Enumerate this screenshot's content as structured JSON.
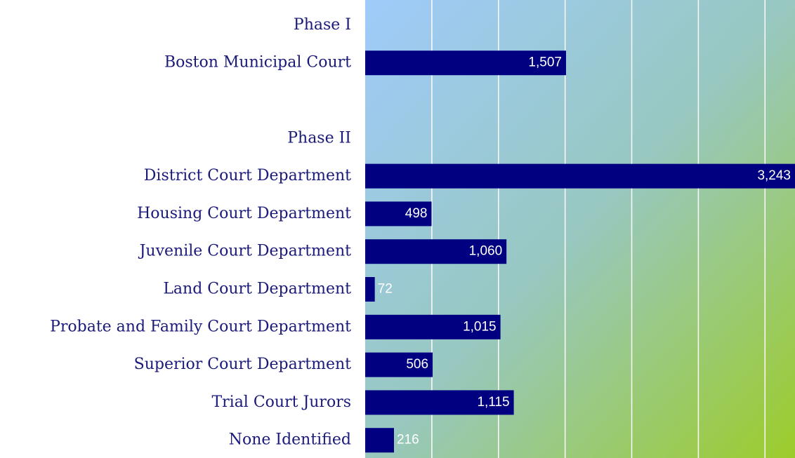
{
  "chart_data": {
    "type": "bar",
    "orientation": "horizontal",
    "categories": [
      "Phase I",
      "Boston Municipal Court",
      null,
      "Phase II",
      "District Court Department",
      "Housing Court Department",
      "Juvenile Court Department",
      "Land Court Department",
      "Probate and Family Court Department",
      "Superior Court Department",
      "Trial Court Jurors",
      "None Identified"
    ],
    "values": [
      null,
      1507,
      null,
      null,
      3243,
      498,
      1060,
      72,
      1015,
      506,
      1115,
      216
    ],
    "value_labels": [
      null,
      "1,507",
      null,
      null,
      "3,243",
      "498",
      "1,060",
      "72",
      "1,015",
      "506",
      "1,115",
      "216"
    ],
    "color": "#000080",
    "xlim": [
      0,
      3225
    ],
    "xticks": [
      0,
      500,
      1000,
      1500,
      2000,
      2500,
      3000
    ],
    "grid": true
  }
}
